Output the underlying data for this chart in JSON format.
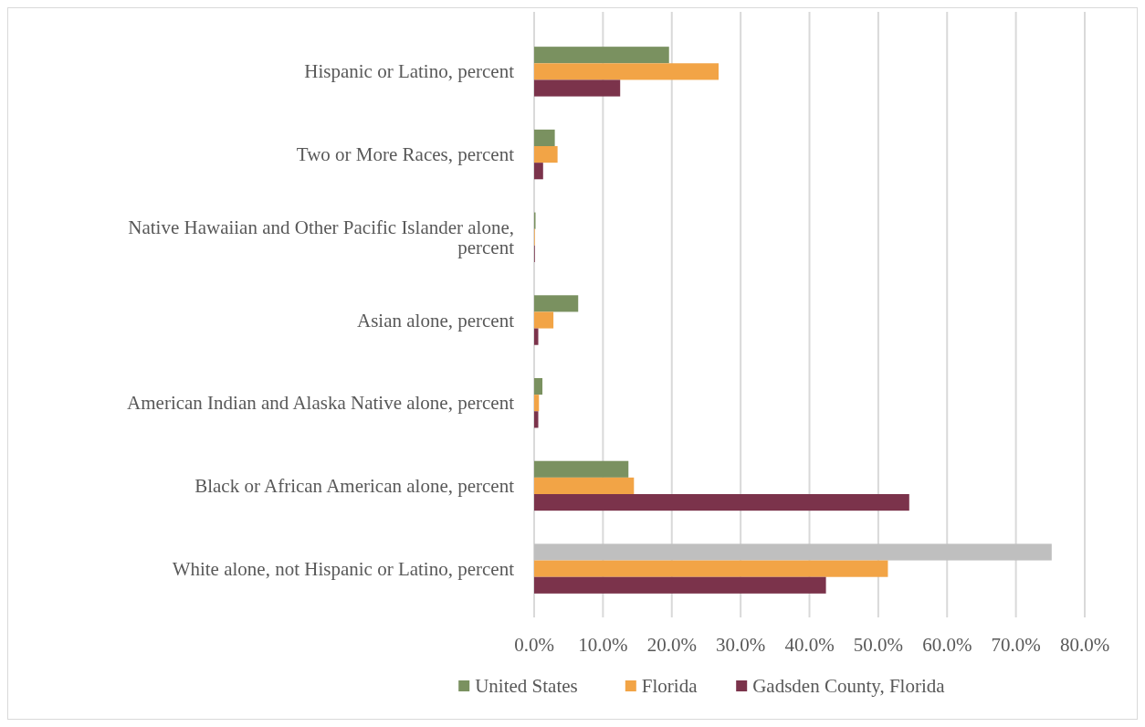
{
  "chart_data": {
    "type": "bar",
    "orientation": "horizontal",
    "categories": [
      "Hispanic or Latino, percent",
      "Two or More Races, percent",
      "Native Hawaiian and Other Pacific Islander alone, percent",
      "Asian alone, percent",
      "American Indian and Alaska Native alone, percent",
      "Black or African American alone, percent",
      "White alone, not Hispanic or Latino, percent"
    ],
    "series": [
      {
        "name": "United States",
        "color": "#7a9160",
        "colors": [
          "#7a9160",
          "#7a9160",
          "#7a9160",
          "#7a9160",
          "#7a9160",
          "#7a9160",
          "#bfbfbf"
        ],
        "values": [
          19.6,
          3.0,
          0.2,
          6.4,
          1.2,
          13.7,
          75.2
        ]
      },
      {
        "name": "Florida",
        "color": "#f2a446",
        "values": [
          26.8,
          3.4,
          0.1,
          2.8,
          0.7,
          14.5,
          51.4
        ]
      },
      {
        "name": "Gadsden County, Florida",
        "color": "#7b334b",
        "values": [
          12.5,
          1.3,
          0.1,
          0.6,
          0.6,
          54.5,
          42.4
        ]
      }
    ],
    "xlim": [
      0,
      80
    ],
    "xticks": [
      {
        "value": 0,
        "label": "0.0%"
      },
      {
        "value": 10,
        "label": "10.0%"
      },
      {
        "value": 20,
        "label": "20.0%"
      },
      {
        "value": 30,
        "label": "30.0%"
      },
      {
        "value": 40,
        "label": "40.0%"
      },
      {
        "value": 50,
        "label": "50.0%"
      },
      {
        "value": 60,
        "label": "60.0%"
      },
      {
        "value": 70,
        "label": "70.0%"
      },
      {
        "value": 80,
        "label": "80.0%"
      }
    ],
    "grid": "x",
    "legend": "bottom"
  }
}
